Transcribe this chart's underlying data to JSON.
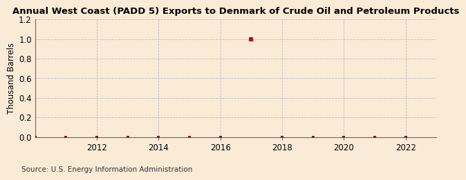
{
  "title": "Annual West Coast (PADD 5) Exports to Denmark of Crude Oil and Petroleum Products",
  "ylabel": "Thousand Barrels",
  "source": "Source: U.S. Energy Information Administration",
  "background_color": "#faebd7",
  "years": [
    2010,
    2011,
    2012,
    2013,
    2014,
    2015,
    2016,
    2017,
    2018,
    2019,
    2020,
    2021,
    2022
  ],
  "values": [
    0.0,
    0.0,
    0.0,
    0.0,
    0.0,
    0.0,
    0.0,
    1.0,
    0.0,
    0.0,
    0.0,
    0.0,
    0.0
  ],
  "dot_color_normal": "#8b1a1a",
  "dot_color_highlight": "#cc0000",
  "ylim": [
    0.0,
    1.2
  ],
  "yticks": [
    0.0,
    0.2,
    0.4,
    0.6,
    0.8,
    1.0,
    1.2
  ],
  "xlim": [
    2010.0,
    2023.0
  ],
  "xticks": [
    2012,
    2014,
    2016,
    2018,
    2020,
    2022
  ],
  "grid_color": "#bbbbbb",
  "title_fontsize": 9.5,
  "axis_fontsize": 8.5,
  "source_fontsize": 7.5
}
